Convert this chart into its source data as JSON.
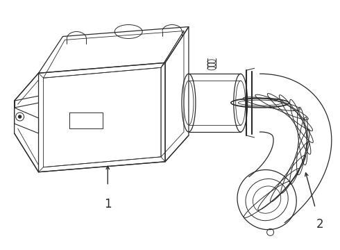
{
  "background_color": "#ffffff",
  "line_color": "#2a2a2a",
  "label1": "1",
  "label2": "2",
  "figsize": [
    4.9,
    3.6
  ],
  "dpi": 100
}
